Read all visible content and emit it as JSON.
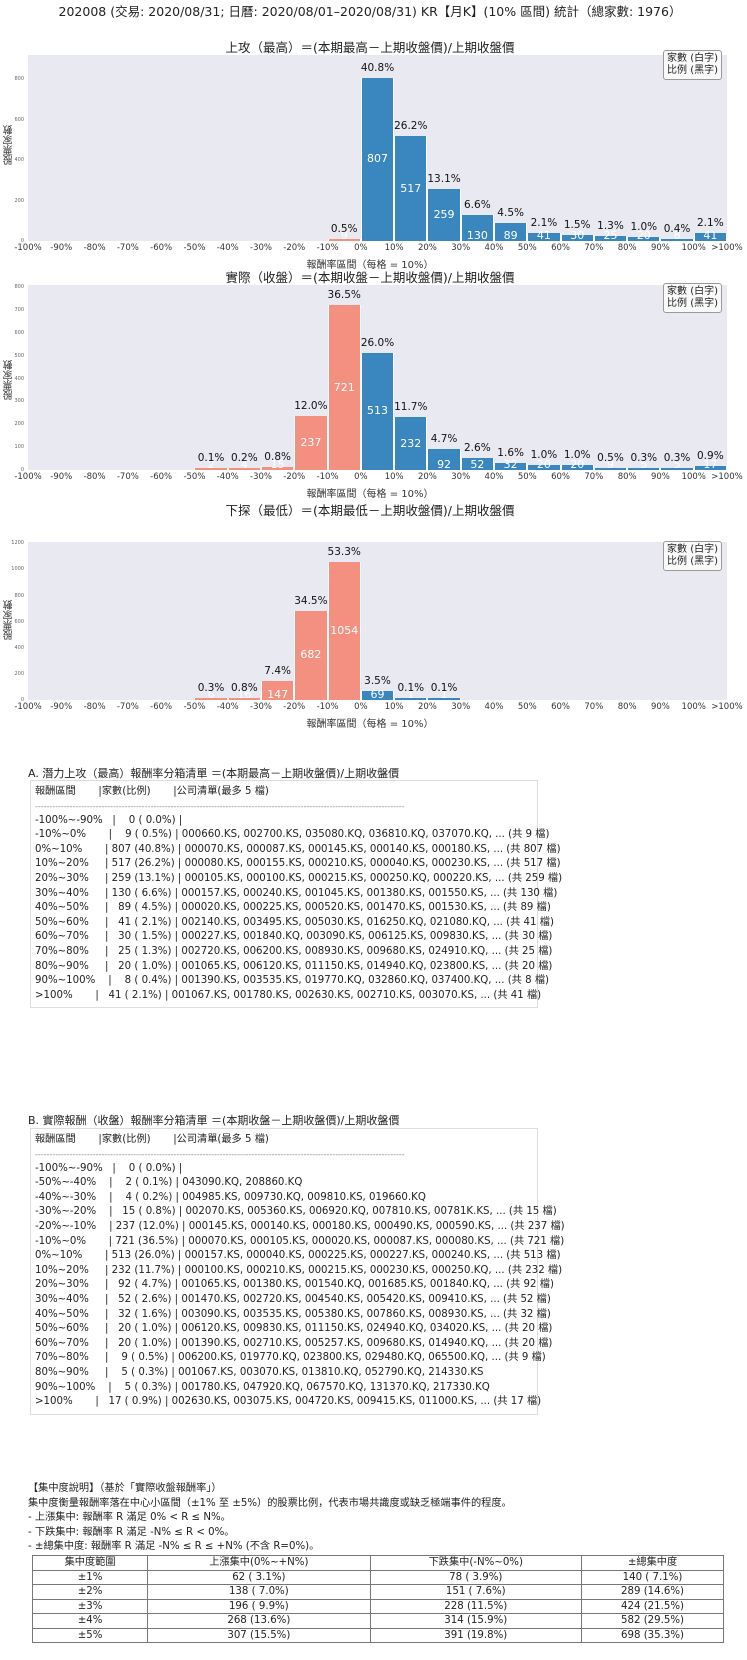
{
  "page_title": "202008 (交易: 2020/08/31; 日曆: 2020/08/01–2020/08/31) KR【月K】(10% 區間) 統計（總家數: 1976）",
  "legend": {
    "line1": "家數 (白字)",
    "line2": "比例 (黑字)"
  },
  "xlabel": "報酬率區間（每格 = 10%）",
  "ylabel": "股票家數",
  "x_ticks": [
    "-100%",
    "-90%",
    "-80%",
    "-70%",
    "-60%",
    "-50%",
    "-40%",
    "-30%",
    "-20%",
    "-10%",
    "0%",
    "10%",
    "20%",
    "30%",
    "40%",
    "50%",
    "60%",
    "70%",
    "80%",
    "90%",
    "100%",
    ">100%"
  ],
  "colors": {
    "positive": "#3a87c0",
    "negative": "#f3907f",
    "plot_bg": "#e9e9f1"
  },
  "chart_data": [
    {
      "type": "bar",
      "title": "上攻（最高）＝(本期最高－上期收盤價)/上期收盤價",
      "xlabel": "報酬率區間（每格 = 10%）",
      "ylabel": "股票家數",
      "ylim": [
        0,
        920
      ],
      "y_ticks": [
        "0",
        "200",
        "400",
        "600",
        "800"
      ],
      "categories": [
        "-100%~-90%",
        "-90%~-80%",
        "-80%~-70%",
        "-70%~-60%",
        "-60%~-50%",
        "-50%~-40%",
        "-40%~-30%",
        "-30%~-20%",
        "-20%~-10%",
        "-10%~0%",
        "0%~10%",
        "10%~20%",
        "20%~30%",
        "30%~40%",
        "40%~50%",
        "50%~60%",
        "60%~70%",
        "70%~80%",
        "80%~90%",
        "90%~100%",
        ">100%"
      ],
      "values": [
        0,
        0,
        0,
        0,
        0,
        0,
        0,
        0,
        0,
        9,
        807,
        517,
        259,
        130,
        89,
        41,
        30,
        25,
        20,
        8,
        41
      ],
      "percents": [
        "",
        "",
        "",
        "",
        "",
        "",
        "",
        "",
        "",
        "0.5%",
        "40.8%",
        "26.2%",
        "13.1%",
        "6.6%",
        "4.5%",
        "2.1%",
        "1.5%",
        "1.3%",
        "1.0%",
        "0.4%",
        "2.1%"
      ],
      "legend": [
        "家數 (白字)",
        "比例 (黑字)"
      ],
      "grid": false
    },
    {
      "type": "bar",
      "title": "實際（收盤）＝(本期收盤－上期收盤價)/上期收盤價",
      "xlabel": "報酬率區間（每格 = 10%）",
      "ylabel": "股票家數",
      "ylim": [
        0,
        810
      ],
      "y_ticks": [
        "0",
        "100",
        "200",
        "300",
        "400",
        "500",
        "600",
        "700",
        "800"
      ],
      "categories": [
        "-100%~-90%",
        "-90%~-80%",
        "-80%~-70%",
        "-70%~-60%",
        "-60%~-50%",
        "-50%~-40%",
        "-40%~-30%",
        "-30%~-20%",
        "-20%~-10%",
        "-10%~0%",
        "0%~10%",
        "10%~20%",
        "20%~30%",
        "30%~40%",
        "40%~50%",
        "50%~60%",
        "60%~70%",
        "70%~80%",
        "80%~90%",
        "90%~100%",
        ">100%"
      ],
      "values": [
        0,
        0,
        0,
        0,
        0,
        2,
        4,
        15,
        237,
        721,
        513,
        232,
        92,
        52,
        32,
        20,
        20,
        9,
        5,
        5,
        17
      ],
      "percents": [
        "",
        "",
        "",
        "",
        "",
        "0.1%",
        "0.2%",
        "0.8%",
        "12.0%",
        "36.5%",
        "26.0%",
        "11.7%",
        "4.7%",
        "2.6%",
        "1.6%",
        "1.0%",
        "1.0%",
        "0.5%",
        "0.3%",
        "0.3%",
        "0.9%"
      ],
      "legend": [
        "家數 (白字)",
        "比例 (黑字)"
      ],
      "grid": false
    },
    {
      "type": "bar",
      "title": "下探（最低）＝(本期最低－上期收盤價)/上期收盤價",
      "xlabel": "報酬率區間（每格 = 10%）",
      "ylabel": "股票家數",
      "ylim": [
        0,
        1210
      ],
      "y_ticks": [
        "0",
        "200",
        "400",
        "600",
        "800",
        "1000",
        "1200"
      ],
      "categories": [
        "-100%~-90%",
        "-90%~-80%",
        "-80%~-70%",
        "-70%~-60%",
        "-60%~-50%",
        "-50%~-40%",
        "-40%~-30%",
        "-30%~-20%",
        "-20%~-10%",
        "-10%~0%",
        "0%~10%",
        "10%~20%",
        "20%~30%",
        "30%~40%",
        "40%~50%",
        "50%~60%",
        "60%~70%",
        "70%~80%",
        "80%~90%",
        "90%~100%",
        ">100%"
      ],
      "values": [
        0,
        0,
        0,
        0,
        0,
        6,
        16,
        147,
        682,
        1054,
        69,
        1,
        1,
        0,
        0,
        0,
        0,
        0,
        0,
        0,
        0
      ],
      "percents": [
        "",
        "",
        "",
        "",
        "",
        "0.3%",
        "0.8%",
        "7.4%",
        "34.5%",
        "53.3%",
        "3.5%",
        "0.1%",
        "0.1%",
        "",
        "",
        "",
        "",
        "",
        "",
        "",
        ""
      ],
      "legend": [
        "家數 (白字)",
        "比例 (黑字)"
      ],
      "grid": false
    }
  ],
  "list_a": {
    "title": "A. 潛力上攻（最高）報酬率分箱清單 ＝(本期最高－上期收盤價)/上期收盤價",
    "header": "報酬區間       |家數(比例)       |公司清單(最多 5 檔)",
    "separator": "--------------------------------------------------------------------------------------------------------------------------------",
    "rows": [
      "-100%~-90%   |    0 ( 0.0%) |",
      "-10%~0%       |    9 ( 0.5%) | 000660.KS, 002700.KS, 035080.KQ, 036810.KQ, 037070.KQ, ... (共 9 檔)",
      "0%~10%       | 807 (40.8%) | 000070.KS, 000087.KS, 000145.KS, 000140.KS, 000180.KS, ... (共 807 檔)",
      "10%~20%     | 517 (26.2%) | 000080.KS, 000155.KS, 000210.KS, 000040.KS, 000230.KS, ... (共 517 檔)",
      "20%~30%     | 259 (13.1%) | 000105.KS, 000100.KS, 000215.KS, 000250.KQ, 000220.KS, ... (共 259 檔)",
      "30%~40%     | 130 ( 6.6%) | 000157.KS, 000240.KS, 001045.KS, 001380.KS, 001550.KS, ... (共 130 檔)",
      "40%~50%     |   89 ( 4.5%) | 000020.KS, 000225.KS, 000520.KS, 001470.KS, 001530.KS, ... (共 89 檔)",
      "50%~60%     |   41 ( 2.1%) | 002140.KS, 003495.KS, 005030.KS, 016250.KQ, 021080.KQ, ... (共 41 檔)",
      "60%~70%     |   30 ( 1.5%) | 000227.KS, 001840.KQ, 003090.KS, 006125.KS, 009830.KS, ... (共 30 檔)",
      "70%~80%     |   25 ( 1.3%) | 002720.KS, 006200.KS, 008930.KS, 009680.KS, 024910.KQ, ... (共 25 檔)",
      "80%~90%     |   20 ( 1.0%) | 001065.KS, 006120.KS, 011150.KS, 014940.KQ, 023800.KS, ... (共 20 檔)",
      "90%~100%    |    8 ( 0.4%) | 001390.KS, 003535.KS, 019770.KQ, 032860.KQ, 037400.KQ, ... (共 8 檔)",
      ">100%       |   41 ( 2.1%) | 001067.KS, 001780.KS, 002630.KS, 002710.KS, 003070.KS, ... (共 41 檔)"
    ]
  },
  "list_b": {
    "title": "B. 實際報酬（收盤）報酬率分箱清單 ＝(本期收盤－上期收盤價)/上期收盤價",
    "header": "報酬區間       |家數(比例)       |公司清單(最多 5 檔)",
    "separator": "--------------------------------------------------------------------------------------------------------------------------------",
    "rows": [
      "-100%~-90%   |    0 ( 0.0%) |",
      "-50%~-40%    |    2 ( 0.1%) | 043090.KQ, 208860.KQ",
      "-40%~-30%    |    4 ( 0.2%) | 004985.KS, 009730.KQ, 009810.KS, 019660.KQ",
      "-30%~-20%    |   15 ( 0.8%) | 002070.KS, 005360.KS, 006920.KQ, 007810.KS, 00781K.KS, ... (共 15 檔)",
      "-20%~-10%    | 237 (12.0%) | 000145.KS, 000140.KS, 000180.KS, 000490.KS, 000590.KS, ... (共 237 檔)",
      "-10%~0%       | 721 (36.5%) | 000070.KS, 000105.KS, 000020.KS, 000087.KS, 000080.KS, ... (共 721 檔)",
      "0%~10%       | 513 (26.0%) | 000157.KS, 000040.KS, 000225.KS, 000227.KS, 000240.KS, ... (共 513 檔)",
      "10%~20%     | 232 (11.7%) | 000100.KS, 000210.KS, 000215.KS, 000230.KS, 000250.KQ, ... (共 232 檔)",
      "20%~30%     |   92 ( 4.7%) | 001065.KS, 001380.KS, 001540.KQ, 001685.KS, 001840.KQ, ... (共 92 檔)",
      "30%~40%     |   52 ( 2.6%) | 001470.KS, 002720.KS, 004540.KS, 005420.KS, 009410.KS, ... (共 52 檔)",
      "40%~50%     |   32 ( 1.6%) | 003090.KS, 003535.KS, 005380.KS, 007860.KS, 008930.KS, ... (共 32 檔)",
      "50%~60%     |   20 ( 1.0%) | 006120.KS, 009830.KS, 011150.KS, 024940.KQ, 034020.KS, ... (共 20 檔)",
      "60%~70%     |   20 ( 1.0%) | 001390.KS, 002710.KS, 005257.KS, 009680.KS, 014940.KQ, ... (共 20 檔)",
      "70%~80%     |    9 ( 0.5%) | 006200.KS, 019770.KQ, 023800.KS, 029480.KQ, 065500.KQ, ... (共 9 檔)",
      "80%~90%     |    5 ( 0.3%) | 001067.KS, 003070.KS, 013810.KQ, 052790.KQ, 214330.KS",
      "90%~100%    |    5 ( 0.3%) | 001780.KS, 047920.KQ, 067570.KQ, 131370.KQ, 217330.KQ",
      ">100%       |   17 ( 0.9%) | 002630.KS, 003075.KS, 004720.KS, 009415.KS, 011000.KS, ... (共 17 檔)"
    ]
  },
  "concentration": {
    "heading": "【集中度說明】（基於「實際收盤報酬率」）",
    "description": "集中度衡量報酬率落在中心小區間（±1% 至 ±5%）的股票比例，代表市場共識度或缺乏極端事件的程度。",
    "bullets": [
      "- 上漲集中: 報酬率 R 滿足 0% < R ≤ N%。",
      "- 下跌集中: 報酬率 R 滿足 -N% ≤ R < 0%。",
      "- ±總集中度: 報酬率 R 滿足 -N% ≤ R ≤ +N% (不含 R=0%)。"
    ],
    "table": {
      "headers": [
        "集中度範圍",
        "上漲集中(0%~+N%)",
        "下跌集中(-N%~0%)",
        "±總集中度"
      ],
      "rows": [
        [
          "±1%",
          "62 ( 3.1%)",
          "78 ( 3.9%)",
          "140 ( 7.1%)"
        ],
        [
          "±2%",
          "138 ( 7.0%)",
          "151 ( 7.6%)",
          "289 (14.6%)"
        ],
        [
          "±3%",
          "196 ( 9.9%)",
          "228 (11.5%)",
          "424 (21.5%)"
        ],
        [
          "±4%",
          "268 (13.6%)",
          "314 (15.9%)",
          "582 (29.5%)"
        ],
        [
          "±5%",
          "307 (15.5%)",
          "391 (19.8%)",
          "698 (35.3%)"
        ]
      ]
    }
  }
}
